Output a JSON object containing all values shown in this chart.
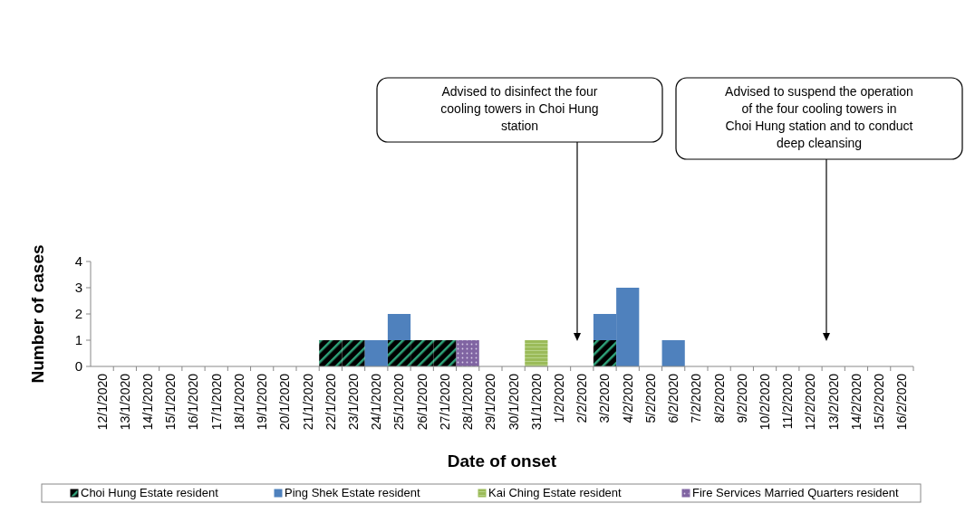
{
  "chart_data": {
    "type": "bar",
    "stacked": true,
    "xlabel": "Date of onset",
    "ylabel": "Number of cases",
    "categories": [
      "12/1/2020",
      "13/1/2020",
      "14/1/2020",
      "15/1/2020",
      "16/1/2020",
      "17/1/2020",
      "18/1/2020",
      "19/1/2020",
      "20/1/2020",
      "21/1/2020",
      "22/1/2020",
      "23/1/2020",
      "24/1/2020",
      "25/1/2020",
      "26/1/2020",
      "27/1/2020",
      "28/1/2020",
      "29/1/2020",
      "30/1/2020",
      "31/1/2020",
      "1/2/2020",
      "2/2/2020",
      "3/2/2020",
      "4/2/2020",
      "5/2/2020",
      "6/2/2020",
      "7/2/2020",
      "8/2/2020",
      "9/2/2020",
      "10/2/2020",
      "11/2/2020",
      "12/2/2020",
      "13/2/2020",
      "14/2/2020",
      "15/2/2020",
      "16/2/2020"
    ],
    "series": [
      {
        "name": "Choi Hung Estate resident",
        "color": "#000000",
        "values": [
          0,
          0,
          0,
          0,
          0,
          0,
          0,
          0,
          0,
          0,
          1,
          1,
          0,
          1,
          1,
          1,
          0,
          0,
          0,
          0,
          0,
          0,
          1,
          0,
          0,
          0,
          0,
          0,
          0,
          0,
          0,
          0,
          0,
          0,
          0,
          0
        ]
      },
      {
        "name": "Ping Shek Estate resident",
        "color": "#4f81bd",
        "values": [
          0,
          0,
          0,
          0,
          0,
          0,
          0,
          0,
          0,
          0,
          0,
          0,
          1,
          1,
          0,
          0,
          0,
          0,
          0,
          0,
          0,
          0,
          1,
          3,
          0,
          1,
          0,
          0,
          0,
          0,
          0,
          0,
          0,
          0,
          0,
          0
        ]
      },
      {
        "name": "Kai Ching Estate resident",
        "color": "#9bbb59",
        "values": [
          0,
          0,
          0,
          0,
          0,
          0,
          0,
          0,
          0,
          0,
          0,
          0,
          0,
          0,
          0,
          0,
          0,
          0,
          0,
          1,
          0,
          0,
          0,
          0,
          0,
          0,
          0,
          0,
          0,
          0,
          0,
          0,
          0,
          0,
          0,
          0
        ]
      },
      {
        "name": "Fire Services Married Quarters resident",
        "color": "#8064a2",
        "values": [
          0,
          0,
          0,
          0,
          0,
          0,
          0,
          0,
          0,
          0,
          0,
          0,
          0,
          0,
          0,
          0,
          1,
          0,
          0,
          0,
          0,
          0,
          0,
          0,
          0,
          0,
          0,
          0,
          0,
          0,
          0,
          0,
          0,
          0,
          0,
          0
        ]
      }
    ],
    "ylim": [
      0,
      4
    ],
    "yticks": [
      0,
      1,
      2,
      3,
      4
    ],
    "legend": "bottom",
    "annotations": [
      "Advised to disinfect the four cooling towers in Choi Hung station",
      "Advised to suspend the operation of the four cooling towers in Choi Hung station and to conduct deep cleansing"
    ]
  }
}
